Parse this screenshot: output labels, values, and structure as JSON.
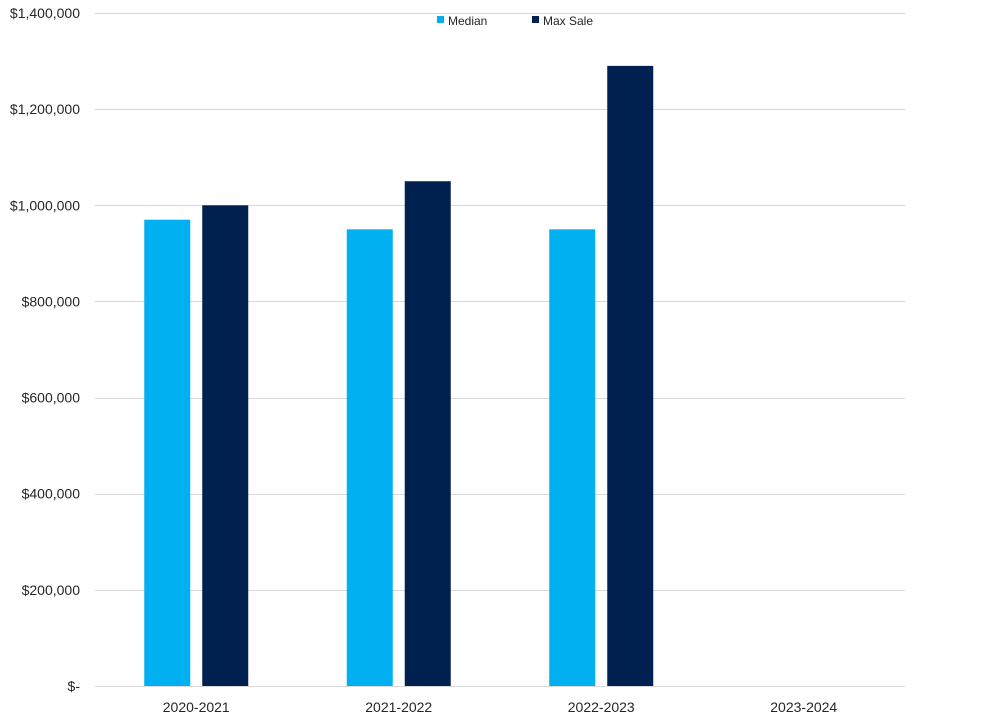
{
  "chart_data": {
    "type": "bar",
    "title": "",
    "xlabel": "",
    "ylabel": "",
    "categories": [
      "2020-2021",
      "2021-2022",
      "2022-2023",
      "2023-2024"
    ],
    "series": [
      {
        "name": "Median",
        "color": "#00B0F0",
        "values": [
          970000,
          950000,
          950000,
          null
        ]
      },
      {
        "name": "Max Sale",
        "color": "#002050",
        "values": [
          1000000,
          1050000,
          1290000,
          null
        ]
      }
    ],
    "ylim": [
      0,
      1400000
    ],
    "yticks": [
      0,
      200000,
      400000,
      600000,
      800000,
      1000000,
      1200000,
      1400000
    ],
    "ytick_labels": [
      "$-",
      "$200,000",
      "$400,000",
      "$600,000",
      "$800,000",
      "$1,000,000",
      "$1,200,000",
      "$1,400,000"
    ],
    "grid": true,
    "legend_position": "top-center",
    "gridline_color": "#D9D9D9"
  }
}
